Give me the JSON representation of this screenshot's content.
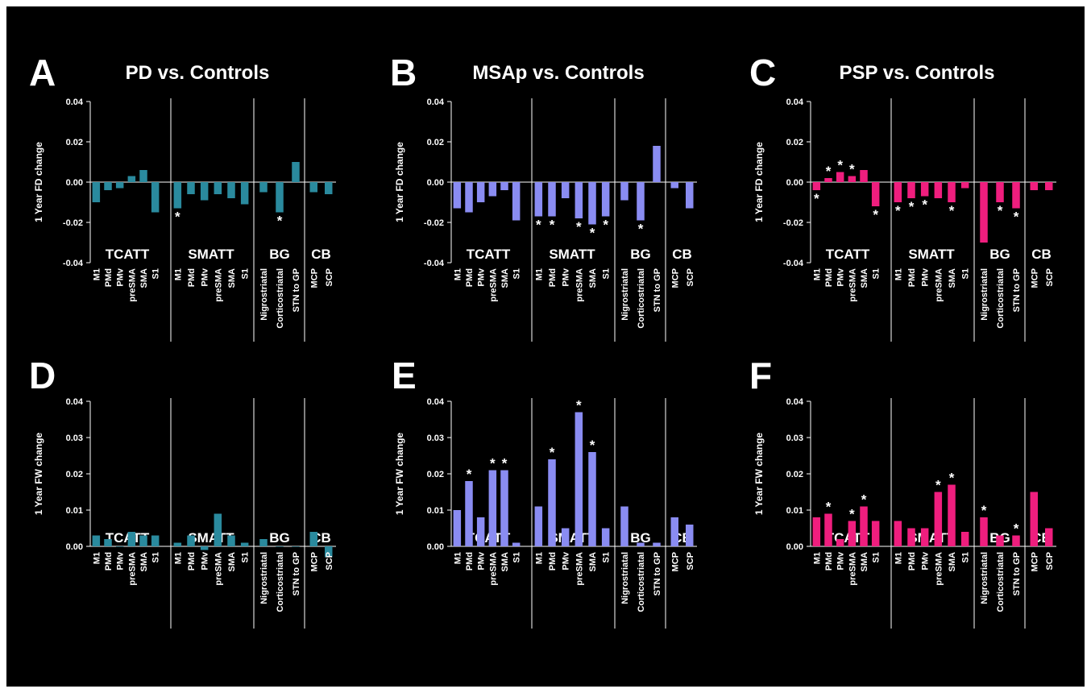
{
  "colors": {
    "background": "#000000",
    "PD": "#2a8a9e",
    "MSAp": "#8a8cf2",
    "PSP": "#ef1e7e",
    "text": "#ffffff"
  },
  "chart_data": [
    {
      "panel": "A",
      "title": "PD vs. Controls",
      "type": "bar",
      "color": "#2a8a9e",
      "ylabel": "1 Year FD change",
      "ylim": [
        -0.04,
        0.04
      ],
      "yticks": [
        "0.04",
        "0.02",
        "0.00",
        "-0.02",
        "-0.04"
      ],
      "groups": [
        {
          "name": "TCATT",
          "categories": [
            "M1",
            "PMd",
            "PMv",
            "preSMA",
            "SMA",
            "S1"
          ],
          "values": [
            -0.01,
            -0.004,
            -0.003,
            0.003,
            0.006,
            -0.015
          ],
          "sig": [
            false,
            false,
            false,
            false,
            false,
            false
          ]
        },
        {
          "name": "SMATT",
          "categories": [
            "M1",
            "PMd",
            "PMv",
            "preSMA",
            "SMA",
            "S1"
          ],
          "values": [
            -0.013,
            -0.006,
            -0.009,
            -0.006,
            -0.008,
            -0.011
          ],
          "sig": [
            true,
            false,
            false,
            false,
            false,
            false
          ]
        },
        {
          "name": "BG",
          "categories": [
            "Nigrostriatal",
            "Corticostriatal",
            "STN to GP"
          ],
          "values": [
            -0.005,
            -0.015,
            0.01
          ],
          "sig": [
            false,
            true,
            false
          ]
        },
        {
          "name": "CB",
          "categories": [
            "MCP",
            "SCP"
          ],
          "values": [
            -0.005,
            -0.006
          ],
          "sig": [
            false,
            false
          ]
        }
      ]
    },
    {
      "panel": "B",
      "title": "MSAp vs. Controls",
      "type": "bar",
      "color": "#8a8cf2",
      "ylabel": "1 Year FD change",
      "ylim": [
        -0.04,
        0.04
      ],
      "yticks": [
        "0.04",
        "0.02",
        "0.00",
        "-0.02",
        "-0.04"
      ],
      "groups": [
        {
          "name": "TCATT",
          "categories": [
            "M1",
            "PMd",
            "PMv",
            "preSMA",
            "SMA",
            "S1"
          ],
          "values": [
            -0.013,
            -0.015,
            -0.01,
            -0.007,
            -0.004,
            -0.019
          ],
          "sig": [
            false,
            false,
            false,
            false,
            false,
            false
          ]
        },
        {
          "name": "SMATT",
          "categories": [
            "M1",
            "PMd",
            "PMv",
            "preSMA",
            "SMA",
            "S1"
          ],
          "values": [
            -0.017,
            -0.017,
            -0.008,
            -0.018,
            -0.021,
            -0.017
          ],
          "sig": [
            true,
            true,
            false,
            true,
            true,
            true
          ]
        },
        {
          "name": "BG",
          "categories": [
            "Nigrostriatal",
            "Corticostriatal",
            "STN to GP"
          ],
          "values": [
            -0.009,
            -0.019,
            0.018
          ],
          "sig": [
            false,
            true,
            false
          ]
        },
        {
          "name": "CB",
          "categories": [
            "MCP",
            "SCP"
          ],
          "values": [
            -0.003,
            -0.013
          ],
          "sig": [
            false,
            false
          ]
        }
      ]
    },
    {
      "panel": "C",
      "title": "PSP vs. Controls",
      "type": "bar",
      "color": "#ef1e7e",
      "ylabel": "1 Year FD change",
      "ylim": [
        -0.04,
        0.04
      ],
      "yticks": [
        "0.04",
        "0.02",
        "0.00",
        "-0.02",
        "-0.04"
      ],
      "groups": [
        {
          "name": "TCATT",
          "categories": [
            "M1",
            "PMd",
            "PMv",
            "preSMA",
            "SMA",
            "S1"
          ],
          "values": [
            -0.004,
            0.002,
            0.005,
            0.003,
            0.006,
            -0.012
          ],
          "sig": [
            true,
            true,
            true,
            true,
            false,
            true
          ]
        },
        {
          "name": "SMATT",
          "categories": [
            "M1",
            "PMd",
            "PMv",
            "preSMA",
            "SMA",
            "S1"
          ],
          "values": [
            -0.01,
            -0.008,
            -0.007,
            -0.008,
            -0.01,
            -0.003
          ],
          "sig": [
            true,
            true,
            true,
            false,
            true,
            false
          ]
        },
        {
          "name": "BG",
          "categories": [
            "Nigrostriatal",
            "Corticostriatal",
            "STN to GP"
          ],
          "values": [
            -0.03,
            -0.01,
            -0.013
          ],
          "sig": [
            false,
            true,
            true
          ]
        },
        {
          "name": "CB",
          "categories": [
            "MCP",
            "SCP"
          ],
          "values": [
            -0.004,
            -0.004
          ],
          "sig": [
            false,
            false
          ]
        }
      ]
    },
    {
      "panel": "D",
      "title": "",
      "type": "bar",
      "color": "#2a8a9e",
      "ylabel": "1 Year FW change",
      "ylim": [
        0,
        0.04
      ],
      "yticks": [
        "0.04",
        "0.03",
        "0.02",
        "0.01",
        "0.00"
      ],
      "groups": [
        {
          "name": "TCATT",
          "categories": [
            "M1",
            "PMd",
            "PMv",
            "preSMA",
            "SMA",
            "S1"
          ],
          "values": [
            0.003,
            0.002,
            0,
            0.004,
            0.003,
            0.003
          ],
          "sig": [
            false,
            false,
            false,
            false,
            false,
            false
          ]
        },
        {
          "name": "SMATT",
          "categories": [
            "M1",
            "PMd",
            "PMv",
            "preSMA",
            "SMA",
            "S1"
          ],
          "values": [
            0.001,
            0.003,
            -0.001,
            0.009,
            0.003,
            0.001
          ],
          "sig": [
            false,
            false,
            false,
            false,
            false,
            false
          ]
        },
        {
          "name": "BG",
          "categories": [
            "Nigrostriatal",
            "Corticostriatal",
            "STN to GP"
          ],
          "values": [
            0.002,
            0,
            0
          ],
          "sig": [
            false,
            false,
            false
          ]
        },
        {
          "name": "CB",
          "categories": [
            "MCP",
            "SCP"
          ],
          "values": [
            0.004,
            -0.003
          ],
          "sig": [
            false,
            false
          ]
        }
      ]
    },
    {
      "panel": "E",
      "title": "",
      "type": "bar",
      "color": "#8a8cf2",
      "ylabel": "1 Year FW change",
      "ylim": [
        0,
        0.04
      ],
      "yticks": [
        "0.04",
        "0.03",
        "0.02",
        "0.01",
        "0.00"
      ],
      "groups": [
        {
          "name": "TCATT",
          "categories": [
            "M1",
            "PMd",
            "PMv",
            "preSMA",
            "SMA",
            "S1"
          ],
          "values": [
            0.01,
            0.018,
            0.008,
            0.021,
            0.021,
            0.001
          ],
          "sig": [
            false,
            true,
            false,
            true,
            true,
            false
          ]
        },
        {
          "name": "SMATT",
          "categories": [
            "M1",
            "PMd",
            "PMv",
            "preSMA",
            "SMA",
            "S1"
          ],
          "values": [
            0.011,
            0.024,
            0.005,
            0.037,
            0.026,
            0.005
          ],
          "sig": [
            false,
            true,
            false,
            true,
            true,
            false
          ]
        },
        {
          "name": "BG",
          "categories": [
            "Nigrostriatal",
            "Corticostriatal",
            "STN to GP"
          ],
          "values": [
            0.011,
            0.001,
            0.001
          ],
          "sig": [
            false,
            false,
            false
          ]
        },
        {
          "name": "CB",
          "categories": [
            "MCP",
            "SCP"
          ],
          "values": [
            0.008,
            0.006
          ],
          "sig": [
            false,
            false
          ]
        }
      ]
    },
    {
      "panel": "F",
      "title": "",
      "type": "bar",
      "color": "#ef1e7e",
      "ylabel": "1 Year FW change",
      "ylim": [
        0,
        0.04
      ],
      "yticks": [
        "0.04",
        "0.03",
        "0.02",
        "0.01",
        "0.00"
      ],
      "groups": [
        {
          "name": "TCATT",
          "categories": [
            "M1",
            "PMd",
            "PMv",
            "preSMA",
            "SMA",
            "S1"
          ],
          "values": [
            0.008,
            0.009,
            0.002,
            0.007,
            0.011,
            0.007
          ],
          "sig": [
            false,
            true,
            false,
            true,
            true,
            false
          ]
        },
        {
          "name": "SMATT",
          "categories": [
            "M1",
            "PMd",
            "PMv",
            "preSMA",
            "SMA",
            "S1"
          ],
          "values": [
            0.007,
            0.005,
            0.005,
            0.015,
            0.017,
            0.004
          ],
          "sig": [
            false,
            false,
            false,
            true,
            true,
            false
          ]
        },
        {
          "name": "BG",
          "categories": [
            "Nigrostriatal",
            "Corticostriatal",
            "STN to GP"
          ],
          "values": [
            0.008,
            0.003,
            0.003
          ],
          "sig": [
            true,
            false,
            true
          ]
        },
        {
          "name": "CB",
          "categories": [
            "MCP",
            "SCP"
          ],
          "values": [
            0.015,
            0.005
          ],
          "sig": [
            false,
            false
          ]
        }
      ]
    }
  ]
}
